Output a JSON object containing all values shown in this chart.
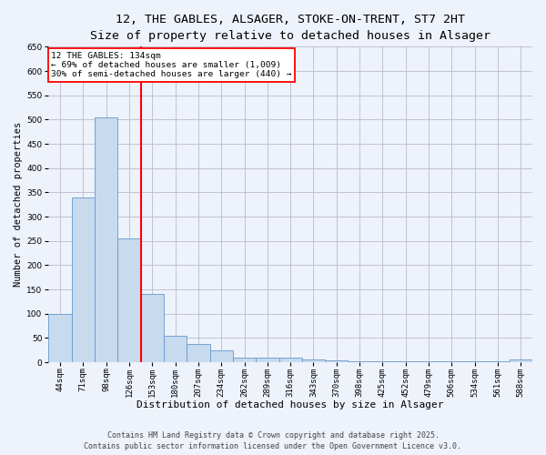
{
  "title1": "12, THE GABLES, ALSAGER, STOKE-ON-TRENT, ST7 2HT",
  "title2": "Size of property relative to detached houses in Alsager",
  "xlabel": "Distribution of detached houses by size in Alsager",
  "ylabel": "Number of detached properties",
  "categories": [
    "44sqm",
    "71sqm",
    "98sqm",
    "126sqm",
    "153sqm",
    "180sqm",
    "207sqm",
    "234sqm",
    "262sqm",
    "289sqm",
    "316sqm",
    "343sqm",
    "370sqm",
    "398sqm",
    "425sqm",
    "452sqm",
    "479sqm",
    "506sqm",
    "534sqm",
    "561sqm",
    "588sqm"
  ],
  "values": [
    100,
    340,
    505,
    255,
    140,
    55,
    38,
    25,
    10,
    10,
    10,
    5,
    3,
    1,
    1,
    1,
    1,
    1,
    1,
    1,
    5
  ],
  "bar_color": "#c8daee",
  "bar_edgecolor": "#6699cc",
  "vline_color": "red",
  "vline_pos": 3.5,
  "annotation_lines": [
    "12 THE GABLES: 134sqm",
    "← 69% of detached houses are smaller (1,009)",
    "30% of semi-detached houses are larger (440) →"
  ],
  "annotation_box_color": "white",
  "annotation_box_edgecolor": "red",
  "ylim": [
    0,
    650
  ],
  "yticks": [
    0,
    50,
    100,
    150,
    200,
    250,
    300,
    350,
    400,
    450,
    500,
    550,
    600,
    650
  ],
  "footer1": "Contains HM Land Registry data © Crown copyright and database right 2025.",
  "footer2": "Contains public sector information licensed under the Open Government Licence v3.0.",
  "bg_color": "#edf2fb",
  "grid_color": "#bbbbcc",
  "title1_fontsize": 9.5,
  "title2_fontsize": 8.5,
  "xlabel_fontsize": 8,
  "ylabel_fontsize": 7.5,
  "tick_fontsize": 6.5,
  "ann_fontsize": 6.8,
  "footer_fontsize": 6
}
